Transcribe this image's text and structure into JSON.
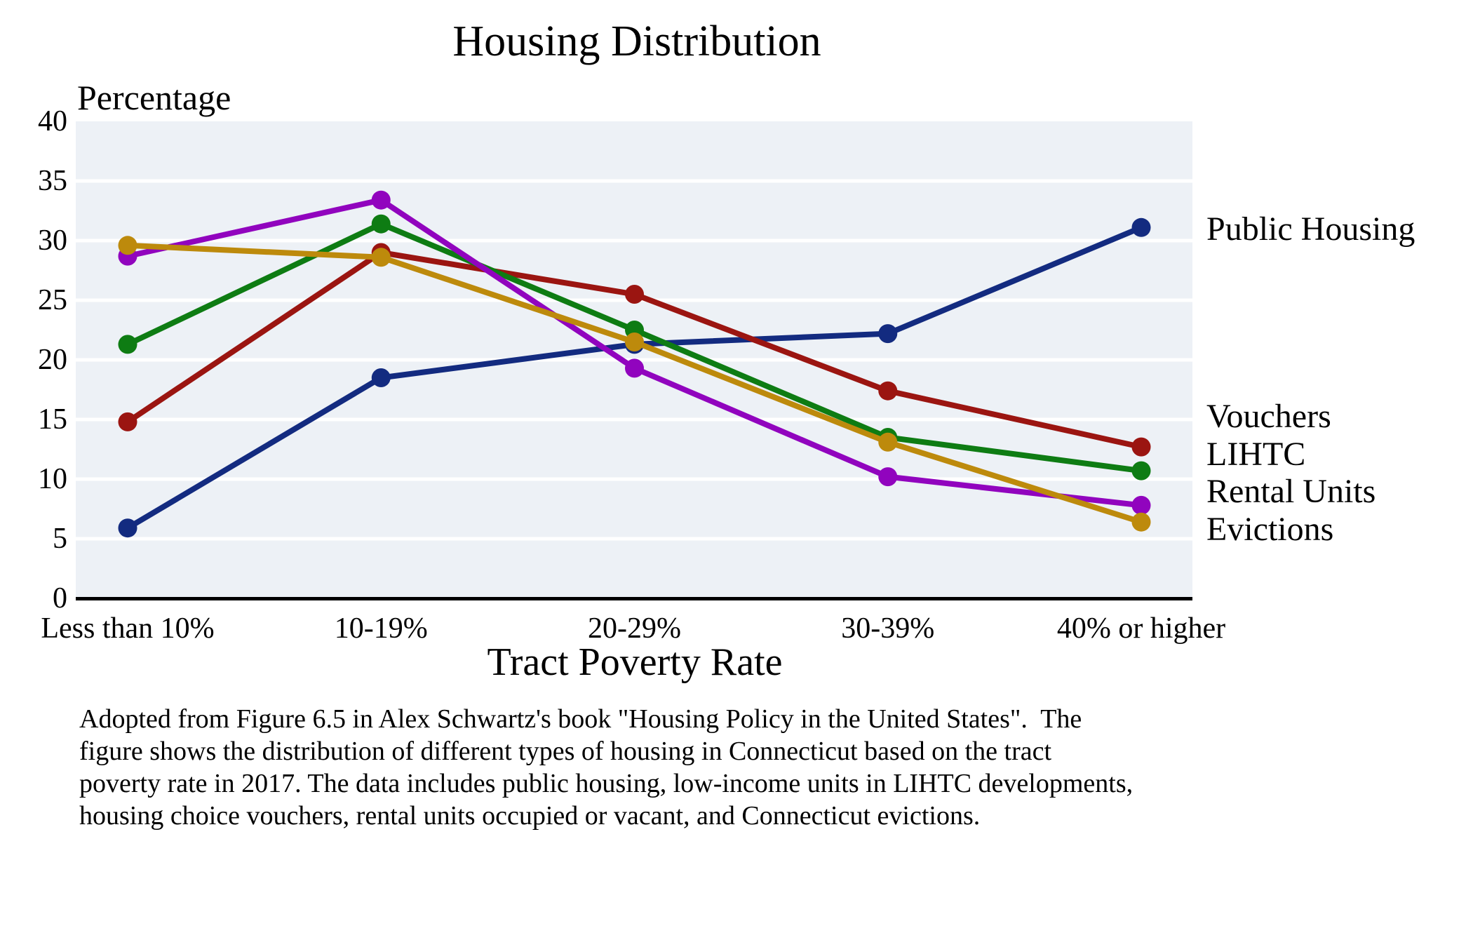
{
  "title": "Housing Distribution",
  "chart_data": {
    "type": "line",
    "title": "Housing Distribution",
    "xlabel": "Tract Poverty Rate",
    "ylabel": "Percentage",
    "ylim": [
      0,
      40
    ],
    "yticks": [
      0,
      5,
      10,
      15,
      20,
      25,
      30,
      35,
      40
    ],
    "grid": "horizontal white gridlines on shaded band background",
    "legend_position": "right of plot, labels aligned with line endpoints",
    "categories": [
      "Less than 10%",
      "10-19%",
      "20-29%",
      "30-39%",
      "40% or higher"
    ],
    "series": [
      {
        "name": "Public Housing",
        "color": "#132B80",
        "values": [
          5.9,
          18.5,
          21.3,
          22.2,
          31.1
        ]
      },
      {
        "name": "Vouchers",
        "color": "#9B1511",
        "values": [
          14.8,
          29.0,
          25.5,
          17.4,
          12.7
        ]
      },
      {
        "name": "LIHTC",
        "color": "#0E7C13",
        "values": [
          21.3,
          31.4,
          22.5,
          13.5,
          10.7
        ]
      },
      {
        "name": "Rental Units",
        "color": "#9104BE",
        "values": [
          28.7,
          33.4,
          19.3,
          10.2,
          7.8
        ]
      },
      {
        "name": "Evictions",
        "color": "#BD8A0C",
        "values": [
          29.6,
          28.6,
          21.5,
          13.1,
          6.4
        ]
      }
    ]
  },
  "colors": {
    "plot_band": "#EDF1F6",
    "gridline": "#FFFFFF",
    "axis_line": "#000000",
    "text": "#000000"
  },
  "caption_lines": [
    "Adopted from Figure 6.5 in Alex Schwartz's book \"Housing Policy in the United States\".  The",
    "figure shows the distribution of different types of housing in Connecticut based on the tract",
    "poverty rate in 2017. The data includes public housing, low-income units in LIHTC developments,",
    "housing choice vouchers, rental units occupied or vacant, and Connecticut evictions."
  ]
}
